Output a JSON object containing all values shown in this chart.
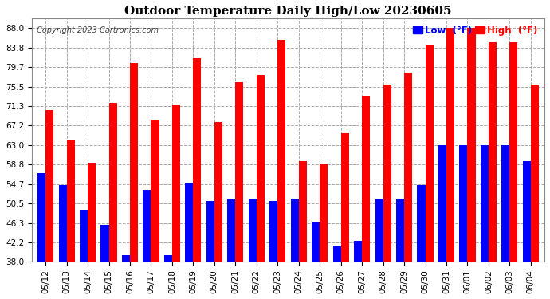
{
  "title": "Outdoor Temperature Daily High/Low 20230605",
  "copyright": "Copyright 2023 Cartronics.com",
  "legend_low": "Low  (°F)",
  "legend_high": "High  (°F)",
  "dates": [
    "05/12",
    "05/13",
    "05/14",
    "05/15",
    "05/16",
    "05/17",
    "05/18",
    "05/19",
    "05/20",
    "05/21",
    "05/22",
    "05/23",
    "05/24",
    "05/25",
    "05/26",
    "05/27",
    "05/28",
    "05/29",
    "05/30",
    "05/31",
    "06/01",
    "06/02",
    "06/03",
    "06/04"
  ],
  "high": [
    70.5,
    64.0,
    59.0,
    72.0,
    80.5,
    68.5,
    71.5,
    81.5,
    68.0,
    76.5,
    78.0,
    85.5,
    59.5,
    58.8,
    65.5,
    73.5,
    76.0,
    78.5,
    84.5,
    88.0,
    88.0,
    85.0,
    85.0,
    76.0
  ],
  "low": [
    57.0,
    54.5,
    49.0,
    46.0,
    39.5,
    53.5,
    39.5,
    55.0,
    51.0,
    51.5,
    51.5,
    51.0,
    51.5,
    46.5,
    41.5,
    42.5,
    51.5,
    51.5,
    54.5,
    63.0,
    63.0,
    63.0,
    63.0,
    59.5
  ],
  "high_color": "#ff0000",
  "low_color": "#0000ff",
  "background_color": "#ffffff",
  "grid_color": "#aaaaaa",
  "ylim_min": 38.0,
  "ylim_max": 90.0,
  "yticks": [
    38.0,
    42.2,
    46.3,
    50.5,
    54.7,
    58.8,
    63.0,
    67.2,
    71.3,
    75.5,
    79.7,
    83.8,
    88.0
  ],
  "bar_width": 0.38,
  "title_fontsize": 11,
  "tick_fontsize": 7.5,
  "label_fontsize": 7.5
}
